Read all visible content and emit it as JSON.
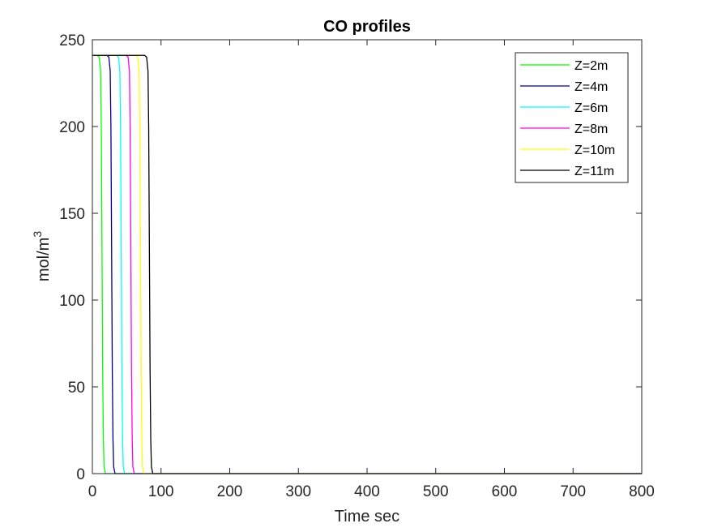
{
  "chart_data": {
    "type": "line",
    "title": "CO profiles",
    "xlabel": "Time sec",
    "ylabel_base": "mol/m",
    "ylabel_sup": "3",
    "xlim": [
      0,
      800
    ],
    "ylim": [
      0,
      250
    ],
    "xticks": [
      0,
      100,
      200,
      300,
      400,
      500,
      600,
      700,
      800
    ],
    "yticks": [
      0,
      50,
      100,
      150,
      200,
      250
    ],
    "grid": false,
    "legend_position": "top-right",
    "series": [
      {
        "name": "Z=2m",
        "color": "#00ff00",
        "x": [
          0,
          7,
          10,
          12,
          13,
          14,
          15,
          16,
          17,
          19,
          800
        ],
        "y": [
          241,
          241,
          240,
          232,
          200,
          130,
          60,
          20,
          4,
          0,
          0
        ]
      },
      {
        "name": "Z=4m",
        "color": "#00008b",
        "x": [
          0,
          21,
          24,
          26,
          27,
          28,
          29,
          30,
          31,
          33,
          800
        ],
        "y": [
          241,
          241,
          240,
          232,
          200,
          130,
          60,
          20,
          4,
          0,
          0
        ]
      },
      {
        "name": "Z=6m",
        "color": "#00ffff",
        "x": [
          0,
          35,
          38,
          40,
          41,
          42,
          43,
          44,
          45,
          47,
          800
        ],
        "y": [
          241,
          241,
          240,
          232,
          200,
          130,
          60,
          20,
          4,
          0,
          0
        ]
      },
      {
        "name": "Z=8m",
        "color": "#ff00ff",
        "x": [
          0,
          49,
          52,
          54,
          55,
          56,
          57,
          58,
          59,
          61,
          800
        ],
        "y": [
          241,
          241,
          240,
          232,
          200,
          130,
          60,
          20,
          4,
          0,
          0
        ]
      },
      {
        "name": "Z=10m",
        "color": "#ffff00",
        "x": [
          0,
          63,
          66,
          68,
          69,
          70,
          71,
          72,
          73,
          75,
          800
        ],
        "y": [
          241,
          241,
          240,
          232,
          200,
          130,
          60,
          20,
          4,
          0,
          0
        ]
      },
      {
        "name": "Z=11m",
        "color": "#000000",
        "x": [
          0,
          76,
          79,
          81,
          82,
          83,
          84,
          85,
          86,
          88,
          800
        ],
        "y": [
          241,
          241,
          240,
          232,
          200,
          130,
          60,
          20,
          4,
          0,
          0
        ]
      }
    ]
  }
}
